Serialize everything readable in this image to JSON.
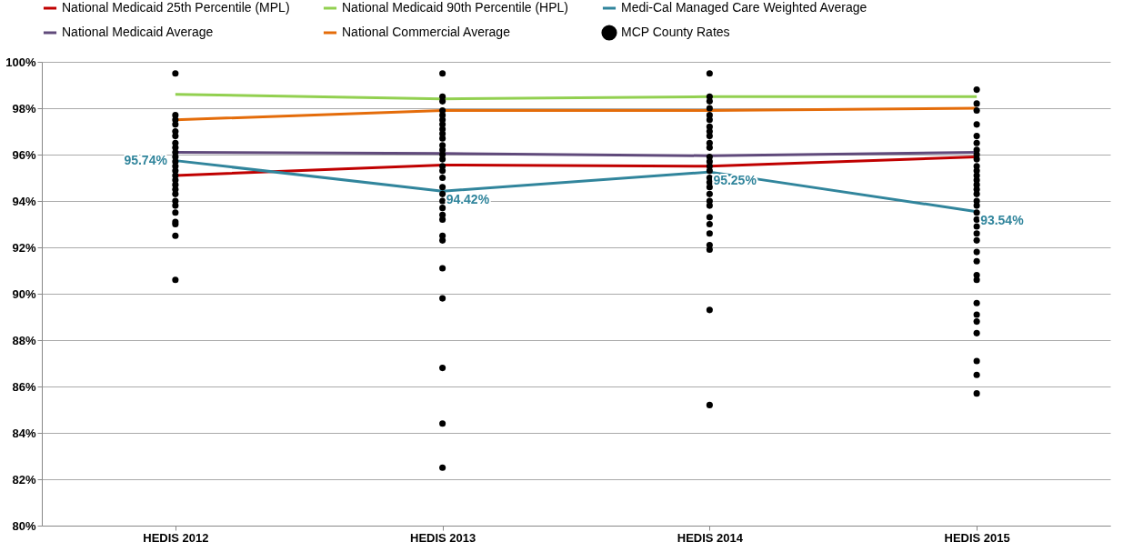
{
  "chart_data": {
    "type": "line",
    "categories": [
      "HEDIS 2012",
      "HEDIS 2013",
      "HEDIS 2014",
      "HEDIS 2015"
    ],
    "series": [
      {
        "name": "National Medicaid 25th Percentile (MPL)",
        "color": "#c00000",
        "values": [
          95.1,
          95.55,
          95.5,
          95.9
        ]
      },
      {
        "name": "National Medicaid 90th Percentile (HPL)",
        "color": "#92d050",
        "values": [
          98.6,
          98.4,
          98.5,
          98.5
        ]
      },
      {
        "name": "Medi-Cal Managed Care Weighted Average",
        "color": "#31859c",
        "values": [
          95.74,
          94.42,
          95.25,
          93.54
        ],
        "value_labels": [
          "95.74%",
          "94.42%",
          "95.25%",
          "93.54%"
        ]
      },
      {
        "name": "National Medicaid Average",
        "color": "#604a7b",
        "values": [
          96.1,
          96.05,
          95.95,
          96.1
        ]
      },
      {
        "name": "National Commercial Average",
        "color": "#e46c0a",
        "values": [
          97.5,
          97.9,
          97.9,
          98.0
        ]
      },
      {
        "name": "MCP County Rates",
        "color": "#000000",
        "type": "scatter",
        "x": [
          "HEDIS 2012",
          "HEDIS 2012",
          "HEDIS 2012",
          "HEDIS 2012",
          "HEDIS 2012",
          "HEDIS 2012",
          "HEDIS 2012",
          "HEDIS 2012",
          "HEDIS 2012",
          "HEDIS 2012",
          "HEDIS 2012",
          "HEDIS 2012",
          "HEDIS 2012",
          "HEDIS 2012",
          "HEDIS 2012",
          "HEDIS 2012",
          "HEDIS 2012",
          "HEDIS 2012",
          "HEDIS 2012",
          "HEDIS 2012",
          "HEDIS 2012",
          "HEDIS 2012",
          "HEDIS 2012",
          "HEDIS 2012",
          "HEDIS 2012",
          "HEDIS 2013",
          "HEDIS 2013",
          "HEDIS 2013",
          "HEDIS 2013",
          "HEDIS 2013",
          "HEDIS 2013",
          "HEDIS 2013",
          "HEDIS 2013",
          "HEDIS 2013",
          "HEDIS 2013",
          "HEDIS 2013",
          "HEDIS 2013",
          "HEDIS 2013",
          "HEDIS 2013",
          "HEDIS 2013",
          "HEDIS 2013",
          "HEDIS 2013",
          "HEDIS 2013",
          "HEDIS 2013",
          "HEDIS 2013",
          "HEDIS 2013",
          "HEDIS 2013",
          "HEDIS 2013",
          "HEDIS 2013",
          "HEDIS 2013",
          "HEDIS 2013",
          "HEDIS 2013",
          "HEDIS 2013",
          "HEDIS 2013",
          "HEDIS 2013",
          "HEDIS 2014",
          "HEDIS 2014",
          "HEDIS 2014",
          "HEDIS 2014",
          "HEDIS 2014",
          "HEDIS 2014",
          "HEDIS 2014",
          "HEDIS 2014",
          "HEDIS 2014",
          "HEDIS 2014",
          "HEDIS 2014",
          "HEDIS 2014",
          "HEDIS 2014",
          "HEDIS 2014",
          "HEDIS 2014",
          "HEDIS 2014",
          "HEDIS 2014",
          "HEDIS 2014",
          "HEDIS 2014",
          "HEDIS 2014",
          "HEDIS 2014",
          "HEDIS 2014",
          "HEDIS 2014",
          "HEDIS 2014",
          "HEDIS 2014",
          "HEDIS 2014",
          "HEDIS 2014",
          "HEDIS 2014",
          "HEDIS 2015",
          "HEDIS 2015",
          "HEDIS 2015",
          "HEDIS 2015",
          "HEDIS 2015",
          "HEDIS 2015",
          "HEDIS 2015",
          "HEDIS 2015",
          "HEDIS 2015",
          "HEDIS 2015",
          "HEDIS 2015",
          "HEDIS 2015",
          "HEDIS 2015",
          "HEDIS 2015",
          "HEDIS 2015",
          "HEDIS 2015",
          "HEDIS 2015",
          "HEDIS 2015",
          "HEDIS 2015",
          "HEDIS 2015",
          "HEDIS 2015",
          "HEDIS 2015",
          "HEDIS 2015",
          "HEDIS 2015",
          "HEDIS 2015",
          "HEDIS 2015",
          "HEDIS 2015",
          "HEDIS 2015",
          "HEDIS 2015",
          "HEDIS 2015",
          "HEDIS 2015",
          "HEDIS 2015",
          "HEDIS 2015",
          "HEDIS 2015"
        ],
        "values": [
          99.5,
          97.7,
          97.5,
          97.3,
          97.0,
          96.8,
          96.5,
          96.3,
          96.1,
          95.9,
          95.7,
          95.5,
          95.3,
          95.1,
          94.9,
          94.7,
          94.5,
          94.3,
          94.0,
          93.8,
          93.5,
          93.1,
          93.0,
          92.5,
          90.6,
          99.5,
          98.5,
          98.3,
          97.9,
          97.7,
          97.5,
          97.3,
          97.1,
          96.9,
          96.7,
          96.4,
          96.2,
          96.0,
          95.8,
          95.5,
          95.3,
          95.0,
          94.6,
          94.3,
          94.0,
          93.7,
          93.4,
          93.2,
          92.5,
          92.3,
          91.1,
          89.8,
          86.8,
          84.4,
          82.5,
          99.5,
          98.5,
          98.3,
          98.0,
          97.7,
          97.5,
          97.2,
          97.0,
          96.8,
          96.5,
          96.3,
          95.9,
          95.7,
          95.5,
          95.3,
          95.0,
          94.8,
          94.6,
          94.3,
          94.0,
          93.8,
          93.3,
          93.0,
          92.6,
          92.1,
          91.9,
          89.3,
          85.2,
          98.8,
          98.2,
          97.9,
          97.3,
          96.8,
          96.5,
          96.2,
          96.0,
          95.8,
          95.5,
          95.3,
          95.1,
          94.9,
          94.7,
          94.5,
          94.3,
          94.0,
          93.8,
          93.5,
          93.2,
          92.9,
          92.6,
          92.3,
          91.8,
          91.4,
          90.8,
          90.6,
          89.6,
          89.1,
          88.8,
          88.3,
          87.1,
          86.5,
          85.7
        ]
      }
    ],
    "ylim": [
      80,
      100
    ],
    "yticks": [
      {
        "value": 80,
        "label": "80%"
      },
      {
        "value": 82,
        "label": "82%"
      },
      {
        "value": 84,
        "label": "84%"
      },
      {
        "value": 86,
        "label": "86%"
      },
      {
        "value": 88,
        "label": "88%"
      },
      {
        "value": 90,
        "label": "90%"
      },
      {
        "value": 92,
        "label": "92%"
      },
      {
        "value": 94,
        "label": "94%"
      },
      {
        "value": 96,
        "label": "96%"
      },
      {
        "value": 98,
        "label": "98%"
      },
      {
        "value": 100,
        "label": "100%"
      }
    ],
    "grid": "y",
    "legend": "top"
  }
}
